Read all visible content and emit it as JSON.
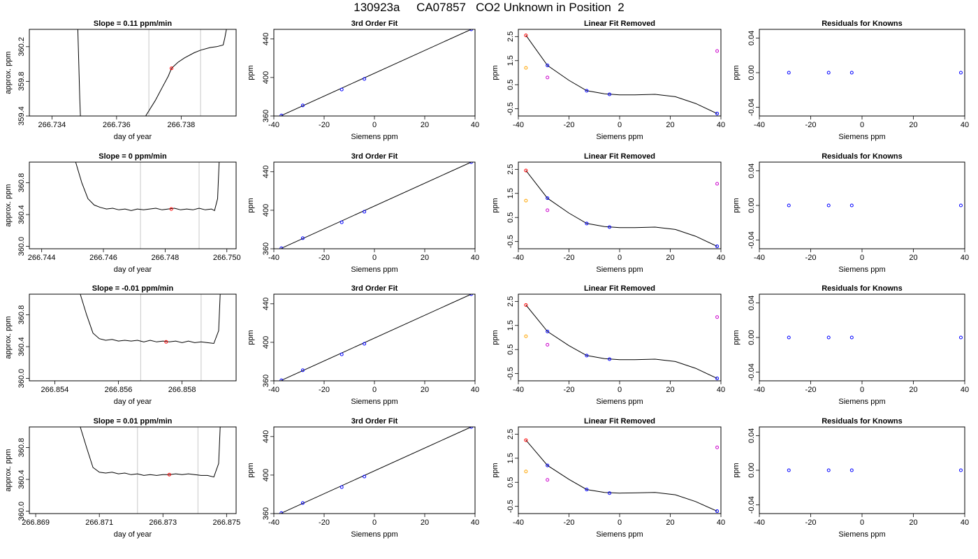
{
  "page": {
    "title": "130923a     CA07857   CO2 Unknown in Position  2"
  },
  "chart_data": [
    {
      "type": "line",
      "title": "Slope =  0.11  ppm/min",
      "xlabel": "day of year",
      "ylabel": "approx. ppm",
      "xlim": [
        266.7333,
        266.7397
      ],
      "ylim": [
        359.4,
        360.4
      ],
      "xticks": [
        "266.734",
        "266.736",
        "266.738"
      ],
      "yticks": [
        "359.4",
        "359.8",
        "360.2"
      ],
      "vlines": [
        266.737,
        266.7386
      ],
      "point": {
        "x": 266.7377,
        "y": 359.95
      },
      "series": [
        {
          "x": [
            266.7348,
            266.73483,
            266.73486,
            266.73488
          ],
          "y": [
            360.4,
            360.0,
            359.6,
            359.4
          ]
        },
        {
          "x": [
            266.7369,
            266.7372,
            266.7374,
            266.7376,
            266.7377,
            266.7379,
            266.7381,
            266.7384,
            266.7386,
            266.7389,
            266.7391,
            266.7393,
            266.73935,
            266.7394
          ],
          "y": [
            359.4,
            359.58,
            359.72,
            359.86,
            359.95,
            360.02,
            360.07,
            360.13,
            360.16,
            360.19,
            360.2,
            360.22,
            360.3,
            360.4
          ]
        }
      ]
    },
    {
      "type": "scatter",
      "title": "3rd Order Fit",
      "xlabel": "Siemens ppm",
      "ylabel": "ppm",
      "xlim": [
        -40,
        40
      ],
      "ylim": [
        360,
        450
      ],
      "xticks": [
        "-40",
        "-20",
        "0",
        "20",
        "40"
      ],
      "yticks": [
        "360",
        "400",
        "440"
      ],
      "points": [
        {
          "x": -37,
          "y": 360.5
        },
        {
          "x": -28.5,
          "y": 371
        },
        {
          "x": -13,
          "y": 387.5
        },
        {
          "x": -4,
          "y": 398.5
        },
        {
          "x": 38.5,
          "y": 450
        }
      ],
      "fit_line": {
        "x": [
          -37,
          38.5
        ],
        "y": [
          360.5,
          450
        ]
      }
    },
    {
      "type": "scatter",
      "title": "Linear Fit Removed",
      "xlabel": "Siemens ppm",
      "ylabel": "ppm",
      "xlim": [
        -40,
        40
      ],
      "ylim": [
        -0.8,
        2.8
      ],
      "xticks": [
        "-40",
        "-20",
        "0",
        "20",
        "40"
      ],
      "yticks": [
        "-0.5",
        "0.5",
        "1.5",
        "2.5"
      ],
      "points": [
        {
          "x": -37,
          "y": 2.55,
          "color": "#ff0000"
        },
        {
          "x": -28.5,
          "y": 1.3,
          "color": "#0000ff"
        },
        {
          "x": -13,
          "y": 0.25,
          "color": "#0000ff"
        },
        {
          "x": -4,
          "y": 0.1,
          "color": "#0000ff"
        },
        {
          "x": 38.5,
          "y": -0.7,
          "color": "#0000ff"
        }
      ],
      "extra_points": [
        {
          "x": -37,
          "y": 1.2,
          "color": "#ffa500"
        },
        {
          "x": -28.5,
          "y": 0.8,
          "color": "#cc00cc"
        },
        {
          "x": 38.5,
          "y": 1.9,
          "color": "#cc00cc"
        }
      ],
      "curve": {
        "x": [
          -37,
          -28.5,
          -20,
          -13,
          -6,
          0,
          6,
          14,
          22,
          30,
          38.5
        ],
        "y": [
          2.55,
          1.3,
          0.68,
          0.25,
          0.12,
          0.08,
          0.08,
          0.1,
          0.0,
          -0.28,
          -0.7
        ]
      }
    },
    {
      "type": "scatter",
      "title": "Residuals for Knowns",
      "xlabel": "Siemens ppm",
      "ylabel": "ppm",
      "xlim": [
        -40,
        40
      ],
      "ylim": [
        -0.05,
        0.05
      ],
      "xticks": [
        "-40",
        "-20",
        "0",
        "20",
        "40"
      ],
      "yticks": [
        "-0.04",
        "0.00",
        "0.04"
      ],
      "points": [
        {
          "x": -28.5,
          "y": 0
        },
        {
          "x": -13,
          "y": 0
        },
        {
          "x": -4,
          "y": 0
        },
        {
          "x": 38.5,
          "y": 0
        }
      ]
    },
    {
      "type": "line",
      "title": "Slope =  0  ppm/min",
      "xlabel": "day of year",
      "ylabel": "approx. ppm",
      "xlim": [
        266.7436,
        266.7503
      ],
      "ylim": [
        359.97,
        361.06
      ],
      "xticks": [
        "266.744",
        "266.746",
        "266.748",
        "266.750"
      ],
      "yticks": [
        "360.0",
        "360.4",
        "360.8"
      ],
      "vlines": [
        266.7472,
        266.7491
      ],
      "point": {
        "x": 266.7482,
        "y": 360.47
      },
      "series": [
        {
          "x": [
            266.7451,
            266.7453,
            266.7455,
            266.7457,
            266.7459,
            266.7461,
            266.7463,
            266.7465,
            266.7467,
            266.7469,
            266.7471,
            266.7473,
            266.7475,
            266.7477,
            266.7479,
            266.7481,
            266.7483,
            266.7485,
            266.7487,
            266.7489,
            266.7491,
            266.7493,
            266.7495,
            266.7496,
            266.7497,
            266.74975
          ],
          "y": [
            361.06,
            360.8,
            360.6,
            360.52,
            360.49,
            360.47,
            360.48,
            360.46,
            360.47,
            360.45,
            360.47,
            360.46,
            360.47,
            360.48,
            360.46,
            360.47,
            360.48,
            360.46,
            360.47,
            360.46,
            360.48,
            360.46,
            360.47,
            360.45,
            360.6,
            361.06
          ]
        }
      ]
    },
    {
      "type": "scatter",
      "title": "3rd Order Fit",
      "xlabel": "Siemens ppm",
      "ylabel": "ppm",
      "xlim": [
        -40,
        40
      ],
      "ylim": [
        360,
        450
      ],
      "xticks": [
        "-40",
        "-20",
        "0",
        "20",
        "40"
      ],
      "yticks": [
        "360",
        "400",
        "440"
      ],
      "points": [
        {
          "x": -37,
          "y": 360.5
        },
        {
          "x": -28.5,
          "y": 371
        },
        {
          "x": -13,
          "y": 387.5
        },
        {
          "x": -4,
          "y": 398.5
        },
        {
          "x": 38.5,
          "y": 450
        }
      ],
      "fit_line": {
        "x": [
          -37,
          38.5
        ],
        "y": [
          360.5,
          450
        ]
      }
    },
    {
      "type": "scatter",
      "title": "Linear Fit Removed",
      "xlabel": "Siemens ppm",
      "ylabel": "ppm",
      "xlim": [
        -40,
        40
      ],
      "ylim": [
        -0.8,
        2.8
      ],
      "xticks": [
        "-40",
        "-20",
        "0",
        "20",
        "40"
      ],
      "yticks": [
        "-0.5",
        "0.5",
        "1.5",
        "2.5"
      ],
      "points": [
        {
          "x": -37,
          "y": 2.45,
          "color": "#ff0000"
        },
        {
          "x": -28.5,
          "y": 1.3,
          "color": "#0000ff"
        },
        {
          "x": -13,
          "y": 0.25,
          "color": "#0000ff"
        },
        {
          "x": -4,
          "y": 0.1,
          "color": "#0000ff"
        },
        {
          "x": 38.5,
          "y": -0.7,
          "color": "#0000ff"
        }
      ],
      "extra_points": [
        {
          "x": -37,
          "y": 1.2,
          "color": "#ffa500"
        },
        {
          "x": -28.5,
          "y": 0.8,
          "color": "#cc00cc"
        },
        {
          "x": 38.5,
          "y": 1.9,
          "color": "#cc00cc"
        }
      ],
      "curve": {
        "x": [
          -37,
          -28.5,
          -20,
          -13,
          -6,
          0,
          6,
          14,
          22,
          30,
          38.5
        ],
        "y": [
          2.45,
          1.3,
          0.68,
          0.25,
          0.12,
          0.08,
          0.08,
          0.1,
          0.0,
          -0.28,
          -0.7
        ]
      }
    },
    {
      "type": "scatter",
      "title": "Residuals for Knowns",
      "xlabel": "Siemens ppm",
      "ylabel": "ppm",
      "xlim": [
        -40,
        40
      ],
      "ylim": [
        -0.05,
        0.05
      ],
      "xticks": [
        "-40",
        "-20",
        "0",
        "20",
        "40"
      ],
      "yticks": [
        "-0.04",
        "0.00",
        "0.04"
      ],
      "points": [
        {
          "x": -28.5,
          "y": 0
        },
        {
          "x": -13,
          "y": 0
        },
        {
          "x": -4,
          "y": 0
        },
        {
          "x": 38.5,
          "y": 0
        }
      ]
    },
    {
      "type": "line",
      "title": "Slope =  -0.01  ppm/min",
      "xlabel": "day of year",
      "ylabel": "approx. ppm",
      "xlim": [
        266.8532,
        266.8597
      ],
      "ylim": [
        359.97,
        361.06
      ],
      "xticks": [
        "266.854",
        "266.856",
        "266.858"
      ],
      "yticks": [
        "360.0",
        "360.4",
        "360.8"
      ],
      "vlines": [
        266.8567,
        266.8586
      ],
      "point": {
        "x": 266.8575,
        "y": 360.46
      },
      "series": [
        {
          "x": [
            266.8548,
            266.855,
            266.8552,
            266.8554,
            266.8556,
            266.8558,
            266.856,
            266.8562,
            266.8564,
            266.8566,
            266.8568,
            266.857,
            266.8572,
            266.8574,
            266.8576,
            266.8578,
            266.858,
            266.8582,
            266.8584,
            266.8586,
            266.8588,
            266.859,
            266.85915,
            266.8592
          ],
          "y": [
            361.06,
            360.8,
            360.57,
            360.5,
            360.48,
            360.49,
            360.47,
            360.48,
            360.47,
            360.48,
            360.46,
            360.48,
            360.46,
            360.47,
            360.46,
            360.47,
            360.45,
            360.47,
            360.45,
            360.46,
            360.45,
            360.44,
            360.6,
            361.06
          ]
        }
      ]
    },
    {
      "type": "scatter",
      "title": "3rd Order Fit",
      "xlabel": "Siemens ppm",
      "ylabel": "ppm",
      "xlim": [
        -40,
        40
      ],
      "ylim": [
        360,
        450
      ],
      "xticks": [
        "-40",
        "-20",
        "0",
        "20",
        "40"
      ],
      "yticks": [
        "360",
        "400",
        "440"
      ],
      "points": [
        {
          "x": -37,
          "y": 360.5
        },
        {
          "x": -28.5,
          "y": 371
        },
        {
          "x": -13,
          "y": 387.5
        },
        {
          "x": -4,
          "y": 398.5
        },
        {
          "x": 38.5,
          "y": 450
        }
      ],
      "fit_line": {
        "x": [
          -37,
          38.5
        ],
        "y": [
          360.5,
          450
        ]
      }
    },
    {
      "type": "scatter",
      "title": "Linear Fit Removed",
      "xlabel": "Siemens ppm",
      "ylabel": "ppm",
      "xlim": [
        -40,
        40
      ],
      "ylim": [
        -0.8,
        2.8
      ],
      "xticks": [
        "-40",
        "-20",
        "0",
        "20",
        "40"
      ],
      "yticks": [
        "-0.5",
        "0.5",
        "1.5",
        "2.5"
      ],
      "points": [
        {
          "x": -37,
          "y": 2.35,
          "color": "#ff0000"
        },
        {
          "x": -28.5,
          "y": 1.25,
          "color": "#0000ff"
        },
        {
          "x": -13,
          "y": 0.25,
          "color": "#0000ff"
        },
        {
          "x": -4,
          "y": 0.1,
          "color": "#0000ff"
        },
        {
          "x": 38.5,
          "y": -0.7,
          "color": "#0000ff"
        }
      ],
      "extra_points": [
        {
          "x": -37,
          "y": 1.05,
          "color": "#ffa500"
        },
        {
          "x": -28.5,
          "y": 0.7,
          "color": "#cc00cc"
        },
        {
          "x": 38.5,
          "y": 1.85,
          "color": "#cc00cc"
        }
      ],
      "curve": {
        "x": [
          -37,
          -28.5,
          -20,
          -13,
          -6,
          0,
          6,
          14,
          22,
          30,
          38.5
        ],
        "y": [
          2.35,
          1.25,
          0.66,
          0.25,
          0.12,
          0.08,
          0.08,
          0.1,
          0.0,
          -0.28,
          -0.7
        ]
      }
    },
    {
      "type": "scatter",
      "title": "Residuals for Knowns",
      "xlabel": "Siemens ppm",
      "ylabel": "ppm",
      "xlim": [
        -40,
        40
      ],
      "ylim": [
        -0.05,
        0.05
      ],
      "xticks": [
        "-40",
        "-20",
        "0",
        "20",
        "40"
      ],
      "yticks": [
        "-0.04",
        "0.00",
        "0.04"
      ],
      "points": [
        {
          "x": -28.5,
          "y": 0
        },
        {
          "x": -13,
          "y": 0
        },
        {
          "x": -4,
          "y": 0
        },
        {
          "x": 38.5,
          "y": 0
        }
      ]
    },
    {
      "type": "line",
      "title": "Slope =  0.01  ppm/min",
      "xlabel": "day of year",
      "ylabel": "approx. ppm",
      "xlim": [
        266.8688,
        266.8753
      ],
      "ylim": [
        359.97,
        361.06
      ],
      "xticks": [
        "266.869",
        "266.871",
        "266.873",
        "266.875"
      ],
      "yticks": [
        "360.0",
        "360.4",
        "360.8"
      ],
      "vlines": [
        266.8722,
        266.8741
      ],
      "point": {
        "x": 266.8732,
        "y": 360.46
      },
      "series": [
        {
          "x": [
            266.8704,
            266.8706,
            266.8708,
            266.871,
            266.8712,
            266.8714,
            266.8716,
            266.8718,
            266.872,
            266.8722,
            266.8724,
            266.8726,
            266.8728,
            266.873,
            266.8732,
            266.8734,
            266.8736,
            266.8738,
            266.874,
            266.8742,
            266.8744,
            266.8746,
            266.87475,
            266.8748
          ],
          "y": [
            361.06,
            360.8,
            360.55,
            360.49,
            360.48,
            360.49,
            360.47,
            360.48,
            360.46,
            360.47,
            360.45,
            360.46,
            360.45,
            360.46,
            360.46,
            360.47,
            360.46,
            360.47,
            360.46,
            360.45,
            360.45,
            360.43,
            360.6,
            361.06
          ]
        }
      ]
    },
    {
      "type": "scatter",
      "title": "3rd Order Fit",
      "xlabel": "Siemens ppm",
      "ylabel": "ppm",
      "xlim": [
        -40,
        40
      ],
      "ylim": [
        360,
        450
      ],
      "xticks": [
        "-40",
        "-20",
        "0",
        "20",
        "40"
      ],
      "yticks": [
        "360",
        "400",
        "440"
      ],
      "points": [
        {
          "x": -37,
          "y": 360.5
        },
        {
          "x": -28.5,
          "y": 371
        },
        {
          "x": -13,
          "y": 387.5
        },
        {
          "x": -4,
          "y": 398.5
        },
        {
          "x": 38.5,
          "y": 450
        }
      ],
      "fit_line": {
        "x": [
          -37,
          38.5
        ],
        "y": [
          360.5,
          450
        ]
      }
    },
    {
      "type": "scatter",
      "title": "Linear Fit Removed",
      "xlabel": "Siemens ppm",
      "ylabel": "ppm",
      "xlim": [
        -40,
        40
      ],
      "ylim": [
        -0.8,
        2.8
      ],
      "xticks": [
        "-40",
        "-20",
        "0",
        "20",
        "40"
      ],
      "yticks": [
        "-0.5",
        "0.5",
        "1.5",
        "2.5"
      ],
      "points": [
        {
          "x": -37,
          "y": 2.25,
          "color": "#ff0000"
        },
        {
          "x": -28.5,
          "y": 1.2,
          "color": "#0000ff"
        },
        {
          "x": -13,
          "y": 0.2,
          "color": "#0000ff"
        },
        {
          "x": -4,
          "y": 0.05,
          "color": "#0000ff"
        },
        {
          "x": 38.5,
          "y": -0.7,
          "color": "#0000ff"
        }
      ],
      "extra_points": [
        {
          "x": -37,
          "y": 0.95,
          "color": "#ffa500"
        },
        {
          "x": -28.5,
          "y": 0.6,
          "color": "#cc00cc"
        },
        {
          "x": 38.5,
          "y": 1.95,
          "color": "#cc00cc"
        }
      ],
      "curve": {
        "x": [
          -37,
          -28.5,
          -20,
          -13,
          -6,
          0,
          6,
          14,
          22,
          30,
          38.5
        ],
        "y": [
          2.25,
          1.2,
          0.62,
          0.2,
          0.08,
          0.05,
          0.06,
          0.08,
          -0.02,
          -0.3,
          -0.7
        ]
      }
    },
    {
      "type": "scatter",
      "title": "Residuals for Knowns",
      "xlabel": "Siemens ppm",
      "ylabel": "ppm",
      "xlim": [
        -40,
        40
      ],
      "ylim": [
        -0.05,
        0.05
      ],
      "xticks": [
        "-40",
        "-20",
        "0",
        "20",
        "40"
      ],
      "yticks": [
        "-0.04",
        "0.00",
        "0.04"
      ],
      "points": [
        {
          "x": -28.5,
          "y": 0
        },
        {
          "x": -13,
          "y": 0
        },
        {
          "x": -4,
          "y": 0
        },
        {
          "x": 38.5,
          "y": 0
        }
      ]
    }
  ]
}
